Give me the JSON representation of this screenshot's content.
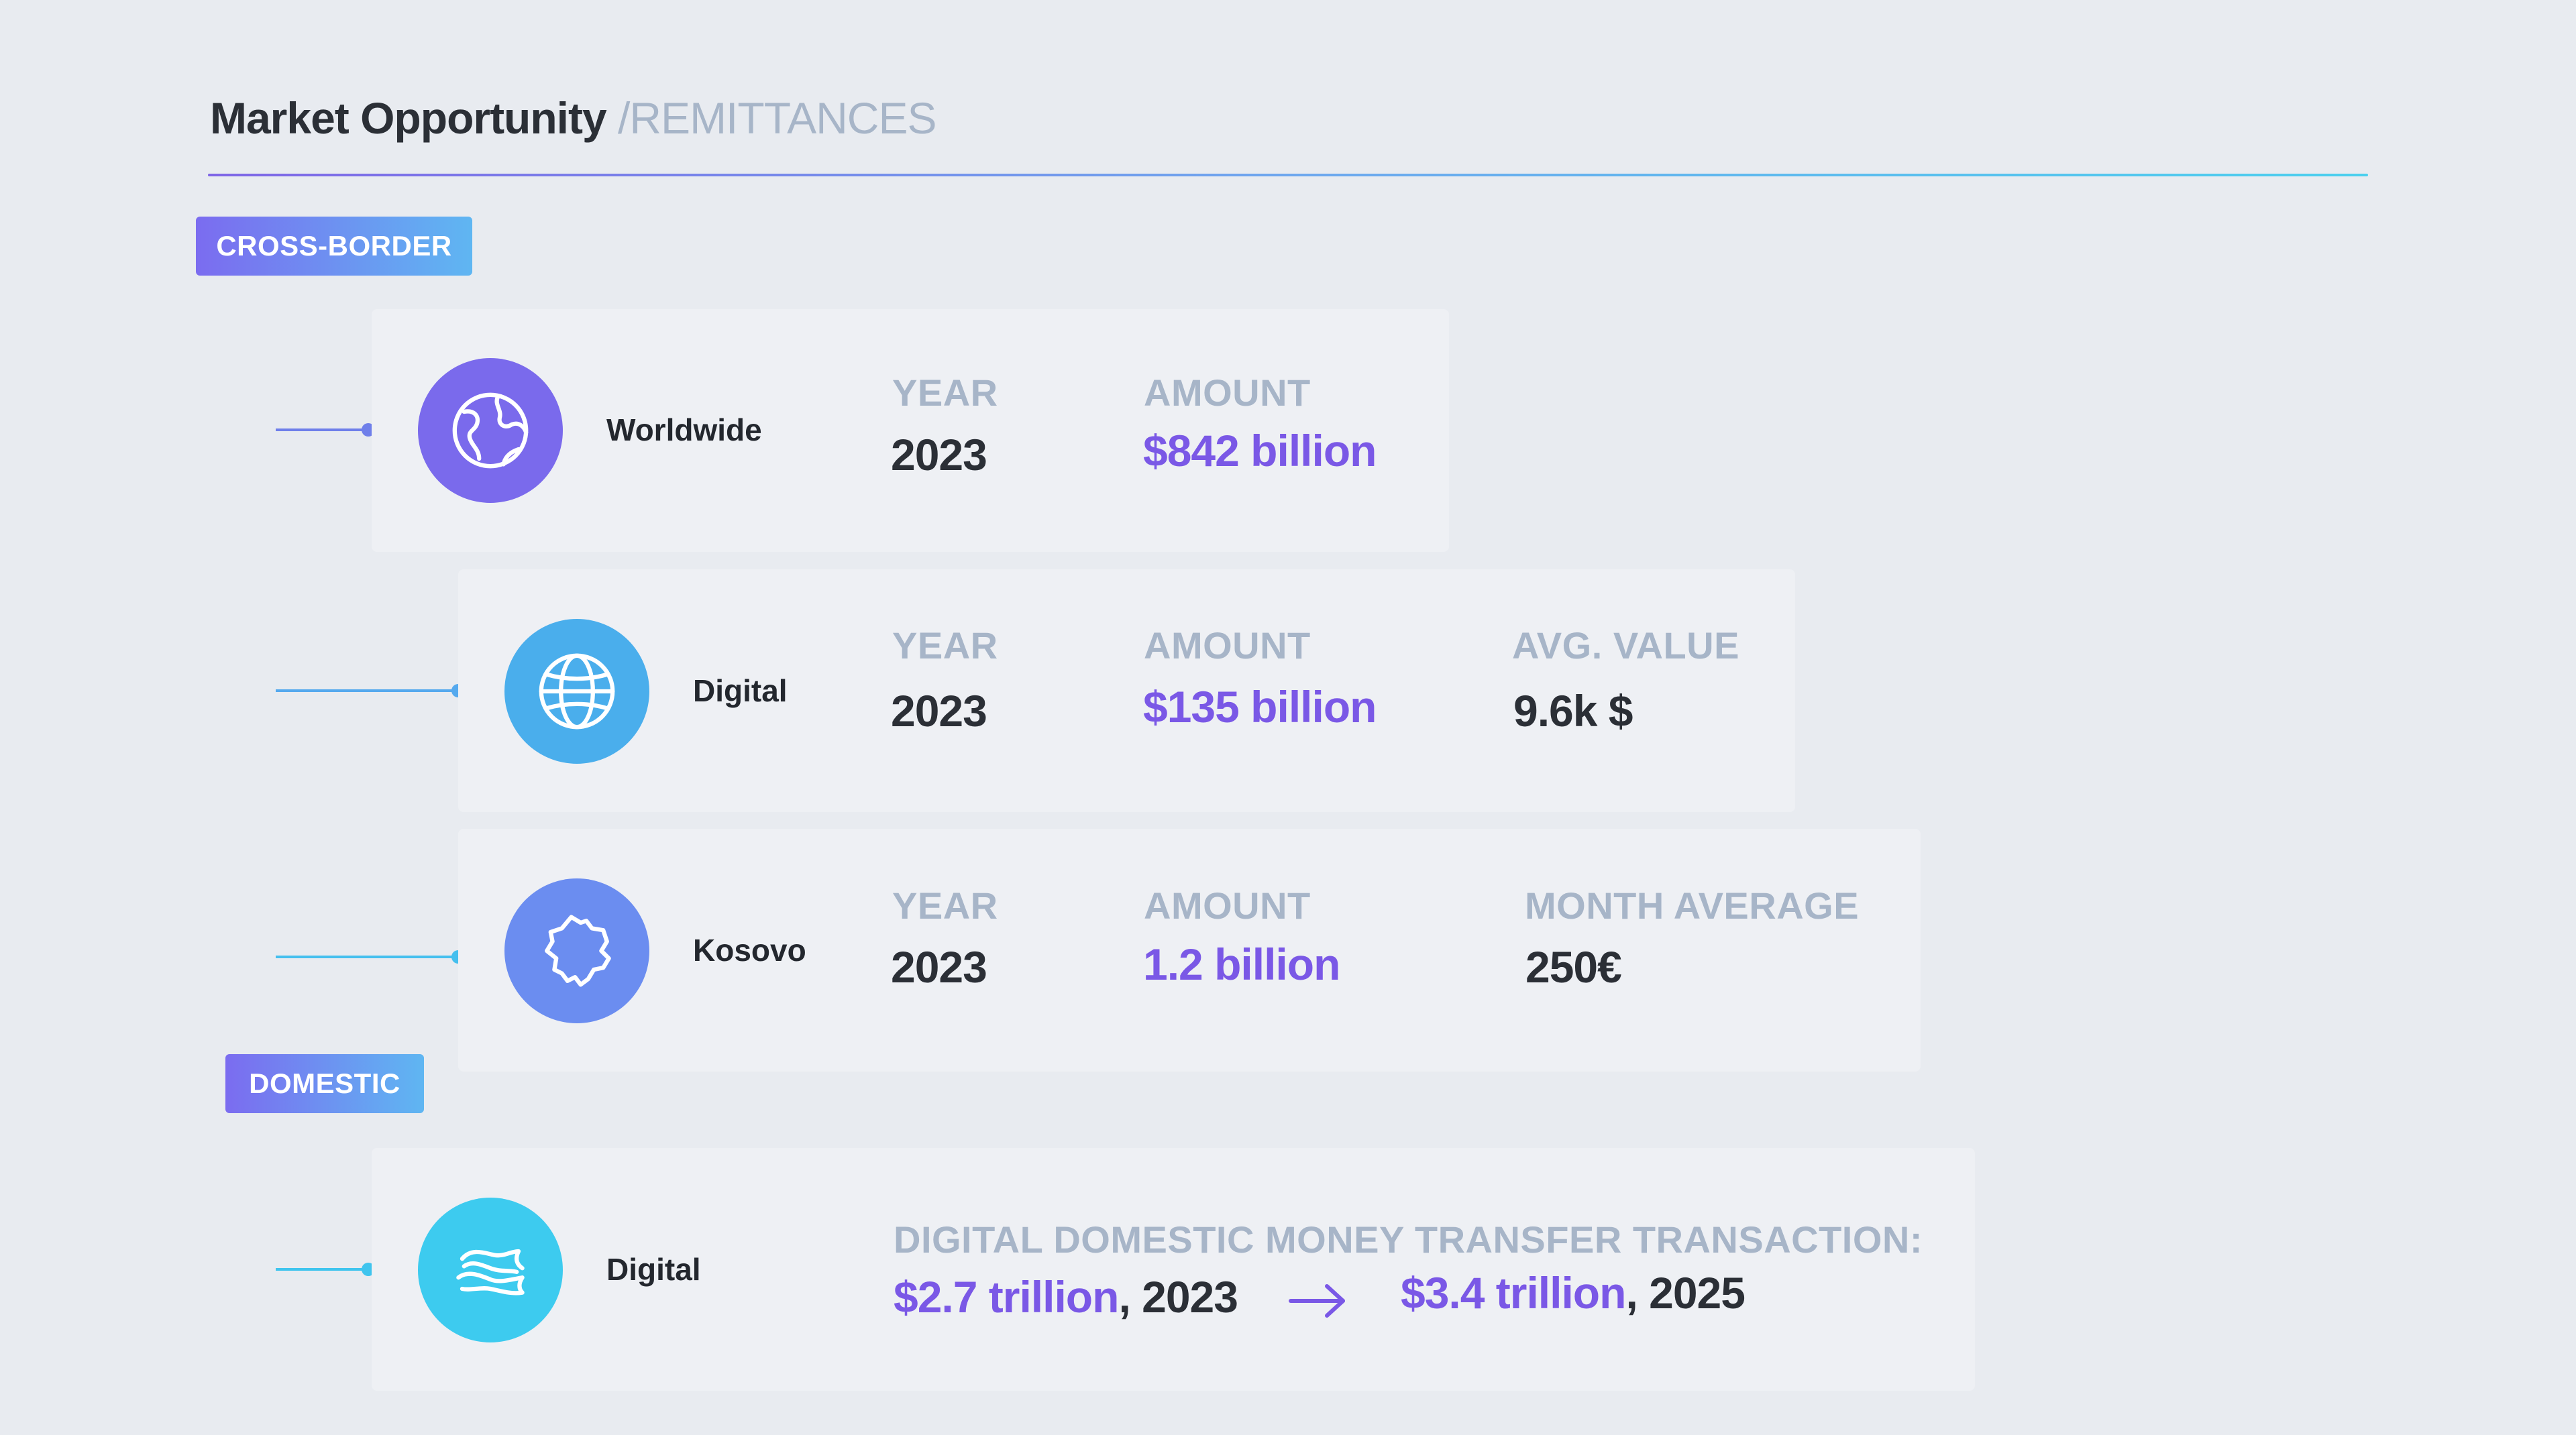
{
  "header": {
    "title": "Market Opportunity",
    "subtitle": "/REMITTANCES"
  },
  "tags": {
    "cross_border": "CROSS-BORDER",
    "domestic": "DOMESTIC"
  },
  "rows": [
    {
      "icon": "globe-continents-icon",
      "label": "Worldwide",
      "year_label": "YEAR",
      "year": "2023",
      "amount_label": "AMOUNT",
      "amount": "$842 billion"
    },
    {
      "icon": "globe-grid-icon",
      "label": "Digital",
      "year_label": "YEAR",
      "year": "2023",
      "amount_label": "AMOUNT",
      "amount": "$135 billion",
      "extra_label": "AVG. VALUE",
      "extra_value": "9.6k $"
    },
    {
      "icon": "kosovo-map-icon",
      "label": "Kosovo",
      "year_label": "YEAR",
      "year": "2023",
      "amount_label": "AMOUNT",
      "amount": "1.2 billion",
      "extra_label": "MONTH AVERAGE",
      "extra_value": "250€"
    },
    {
      "icon": "money-waves-icon",
      "label": "Digital",
      "heading": "DIGITAL DOMESTIC MONEY TRANSFER TRANSACTION:",
      "from_amount": "$2.7 trillion",
      "from_year": ", 2023",
      "to_amount": "$3.4 trillion",
      "to_year": ", 2025"
    }
  ],
  "colors": {
    "background": "#e8ebf0",
    "card": "#eef0f4",
    "accent_purple": "#7a58e6",
    "accent_blue": "#4aaeec",
    "accent_cyan": "#3dcbef",
    "muted_label": "#a7b5c8",
    "text_dark": "#2b2f36"
  }
}
